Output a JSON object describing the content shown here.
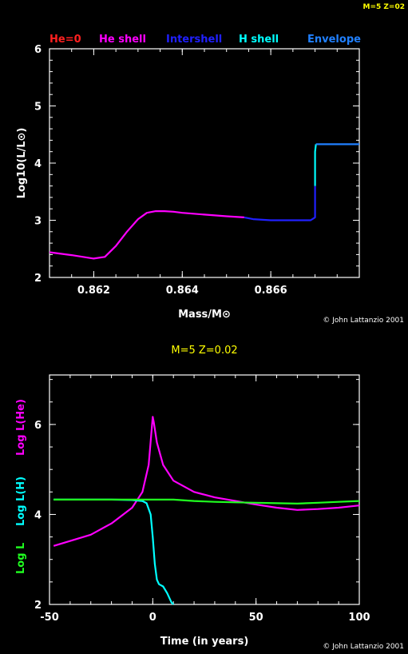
{
  "page_tag": "M=5 Z=02",
  "copyright_top": "© John Lattanzio 2001",
  "copyright_bottom": "© John Lattanzio 2001",
  "bottom_title": "M=5 Z=0.02",
  "colors": {
    "background": "#000000",
    "tag": "#ffff00",
    "he0": "#ff2020",
    "he_shell": "#ff00ff",
    "intershell": "#2020ff",
    "h_shell": "#00ffff",
    "envelope": "#2080ff",
    "log_l": "#20ff20",
    "axes": "#ffffff"
  },
  "chart_data": [
    {
      "type": "line",
      "title": "",
      "xlabel": "Mass/M⊙",
      "ylabel": "Log10(L/L⊙)",
      "xlim": [
        0.861,
        0.868
      ],
      "ylim": [
        2,
        6
      ],
      "xticks": [
        "0.862",
        "0.864",
        "0.866"
      ],
      "yticks": [
        "2",
        "3",
        "4",
        "5",
        "6"
      ],
      "legend_position": "top",
      "legend": [
        "He=0",
        "He shell",
        "Intershell",
        "H shell",
        "Envelope"
      ],
      "series": [
        {
          "name": "He shell",
          "color_key": "he_shell",
          "x": [
            0.861,
            0.8615,
            0.862,
            0.86225,
            0.8625,
            0.86275,
            0.863,
            0.8632,
            0.8634,
            0.8636,
            0.8638,
            0.864,
            0.8645,
            0.865,
            0.8654
          ],
          "y": [
            2.44,
            2.39,
            2.33,
            2.36,
            2.55,
            2.8,
            3.02,
            3.13,
            3.16,
            3.16,
            3.15,
            3.13,
            3.1,
            3.07,
            3.05
          ]
        },
        {
          "name": "Intershell",
          "color_key": "intershell",
          "x": [
            0.8654,
            0.8656,
            0.866,
            0.8665,
            0.8669,
            0.867,
            0.867
          ],
          "y": [
            3.05,
            3.02,
            3.0,
            3.0,
            3.0,
            3.05,
            3.6
          ]
        },
        {
          "name": "H shell",
          "color_key": "h_shell",
          "x": [
            0.867,
            0.867,
            0.86702
          ],
          "y": [
            3.6,
            4.2,
            4.33
          ]
        },
        {
          "name": "Envelope",
          "color_key": "envelope",
          "x": [
            0.86702,
            0.8675,
            0.868
          ],
          "y": [
            4.33,
            4.33,
            4.33
          ]
        }
      ]
    },
    {
      "type": "line",
      "title": "M=5 Z=0.02",
      "xlabel": "Time (in years)",
      "ylabel": "",
      "xlim": [
        -50,
        100
      ],
      "ylim": [
        2,
        7.1
      ],
      "xticks": [
        "-50",
        "0",
        "50",
        "100"
      ],
      "yticks": [
        "2",
        "4",
        "6"
      ],
      "side_labels": [
        "Log L",
        "Log L(H)",
        "Log L(He)"
      ],
      "series": [
        {
          "name": "Log L(He)",
          "color_key": "he_shell",
          "x": [
            -48,
            -30,
            -20,
            -10,
            -5,
            -2,
            0,
            0.5,
            2,
            5,
            10,
            20,
            30,
            40,
            50,
            60,
            70,
            80,
            90,
            100
          ],
          "y": [
            3.3,
            3.55,
            3.8,
            4.15,
            4.5,
            5.1,
            6.17,
            6.05,
            5.6,
            5.1,
            4.75,
            4.5,
            4.38,
            4.3,
            4.22,
            4.15,
            4.1,
            4.12,
            4.15,
            4.2
          ]
        },
        {
          "name": "Log L(H)",
          "color_key": "h_shell",
          "x": [
            -48,
            -20,
            -10,
            -5,
            -3,
            -1,
            0,
            1,
            2,
            3,
            5,
            7,
            9,
            10
          ],
          "y": [
            4.33,
            4.33,
            4.32,
            4.3,
            4.25,
            4.0,
            3.5,
            2.9,
            2.55,
            2.45,
            2.4,
            2.25,
            2.05,
            2.0
          ]
        },
        {
          "name": "Log L",
          "color_key": "log_l",
          "x": [
            -48,
            -20,
            0,
            10,
            20,
            30,
            40,
            50,
            60,
            70,
            80,
            90,
            100
          ],
          "y": [
            4.33,
            4.33,
            4.33,
            4.33,
            4.3,
            4.28,
            4.27,
            4.26,
            4.25,
            4.24,
            4.26,
            4.28,
            4.3
          ]
        }
      ]
    }
  ]
}
